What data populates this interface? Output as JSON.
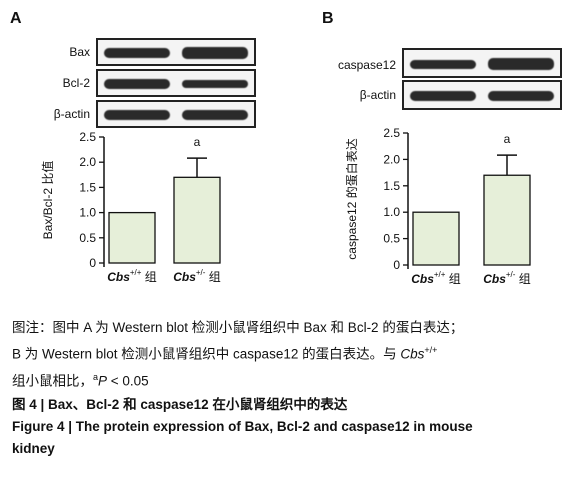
{
  "panels": [
    {
      "letter": "A",
      "blot_labels": [
        "Bax",
        "Bcl-2",
        "β-actin"
      ],
      "ylabel": "Bax/Bcl-2 比值",
      "xtick": [
        {
          "pre": "Cbs",
          "sup": "+/+",
          "post": " 组"
        },
        {
          "pre": "Cbs",
          "sup": "+/-",
          "post": " 组"
        }
      ]
    },
    {
      "letter": "B",
      "blot_labels": [
        "caspase12",
        "β-actin"
      ],
      "ylabel": "caspase12 的蛋白表达",
      "xtick": [
        {
          "pre": "Cbs",
          "sup": "+/+",
          "post": " 组"
        },
        {
          "pre": "Cbs",
          "sup": "+/-",
          "post": " 组"
        }
      ]
    }
  ],
  "chart_data": [
    {
      "type": "bar",
      "categories": [
        "Cbs+/+ 组",
        "Cbs+/- 组"
      ],
      "values": [
        1.0,
        1.7
      ],
      "errors": [
        0,
        0.38
      ],
      "annotations": [
        "",
        "a"
      ],
      "ylabel": "Bax/Bcl-2 比值",
      "ylim": [
        0,
        2.5
      ],
      "yticks": [
        "0",
        "0.5",
        "1.0",
        "1.5",
        "2.0",
        "2.5"
      ],
      "bar_color": "#e6efd9"
    },
    {
      "type": "bar",
      "categories": [
        "Cbs+/+ 组",
        "Cbs+/- 组"
      ],
      "values": [
        1.0,
        1.7
      ],
      "errors": [
        0,
        0.38
      ],
      "annotations": [
        "",
        "a"
      ],
      "ylabel": "caspase12 的蛋白表达",
      "ylim": [
        0,
        2.5
      ],
      "yticks": [
        "0",
        "0.5",
        "1.0",
        "1.5",
        "2.0",
        "2.5"
      ],
      "bar_color": "#e6efd9"
    }
  ],
  "caption": {
    "note_line1": "图注：图中 A 为 Western blot 检测小鼠肾组织中 Bax 和 Bcl-2 的蛋白表达；",
    "note_line2_pre": "B 为 Western blot 检测小鼠肾组织中 caspase12 的蛋白表达。与 ",
    "note_line2_cbs": "Cbs",
    "note_line2_sup": "+/+",
    "note_line3_pre": "组小鼠相比，",
    "note_line3_sup": "a",
    "note_line3_p": "P",
    "note_line3_post": " < 0.05",
    "title_cn": "图 4  |  Bax、Bcl-2 和 caspase12 在小鼠肾组织中的表达",
    "title_en_line1": "Figure 4  |  The protein expression of Bax, Bcl-2 and caspase12 in mouse",
    "title_en_line2": "kidney"
  }
}
